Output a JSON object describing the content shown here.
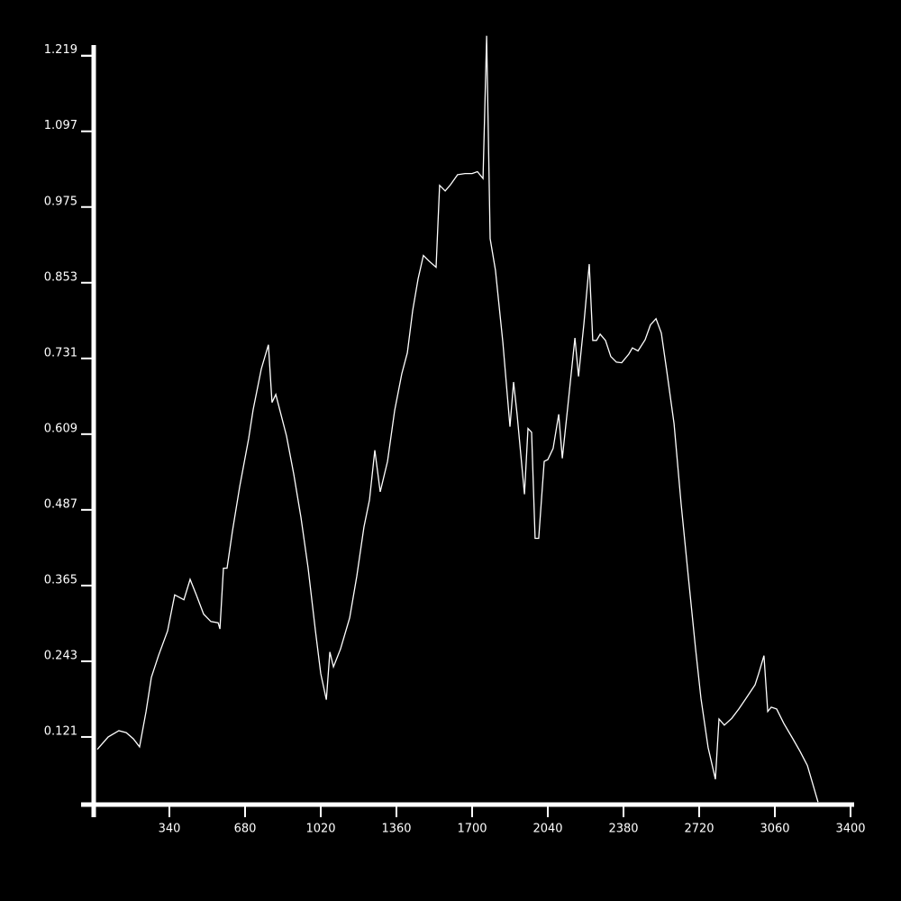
{
  "chart_data": {
    "type": "line",
    "color": "#ffffff",
    "xlim": [
      0,
      3400
    ],
    "ylim": [
      0.012,
      1.236
    ],
    "xticks": [
      340,
      680,
      1020,
      1360,
      1700,
      2040,
      2380,
      2720,
      3060,
      3400
    ],
    "yticks": [
      0.121,
      0.243,
      0.365,
      0.487,
      0.609,
      0.731,
      0.853,
      0.975,
      1.097,
      1.219
    ],
    "x": [
      16,
      65,
      113,
      146,
      178,
      206,
      235,
      259,
      291,
      332,
      364,
      405,
      433,
      461,
      494,
      526,
      559,
      567,
      583,
      599,
      623,
      656,
      696,
      716,
      753,
      785,
      801,
      818,
      866,
      899,
      931,
      963,
      996,
      1020,
      1045,
      1061,
      1077,
      1109,
      1150,
      1182,
      1214,
      1239,
      1263,
      1287,
      1320,
      1352,
      1384,
      1409,
      1433,
      1457,
      1481,
      1506,
      1538,
      1554,
      1579,
      1603,
      1635,
      1668,
      1700,
      1724,
      1749,
      1765,
      1781,
      1805,
      1838,
      1870,
      1886,
      1902,
      1935,
      1951,
      1967,
      1983,
      1999,
      2024,
      2040,
      2064,
      2089,
      2105,
      2129,
      2162,
      2178,
      2202,
      2226,
      2242,
      2259,
      2275,
      2299,
      2323,
      2348,
      2372,
      2404,
      2420,
      2445,
      2477,
      2501,
      2526,
      2550,
      2574,
      2607,
      2639,
      2671,
      2704,
      2728,
      2760,
      2793,
      2809,
      2833,
      2866,
      2898,
      2930,
      2971,
      2987,
      3011,
      3028,
      3044,
      3068,
      3100,
      3141,
      3173,
      3206,
      3254
    ],
    "values": [
      0.101,
      0.121,
      0.131,
      0.128,
      0.118,
      0.105,
      0.162,
      0.217,
      0.252,
      0.292,
      0.35,
      0.342,
      0.375,
      0.35,
      0.319,
      0.307,
      0.305,
      0.295,
      0.393,
      0.393,
      0.452,
      0.525,
      0.602,
      0.648,
      0.714,
      0.753,
      0.66,
      0.673,
      0.606,
      0.544,
      0.475,
      0.394,
      0.292,
      0.223,
      0.181,
      0.258,
      0.234,
      0.263,
      0.313,
      0.38,
      0.459,
      0.503,
      0.583,
      0.516,
      0.565,
      0.647,
      0.706,
      0.74,
      0.808,
      0.859,
      0.897,
      0.888,
      0.878,
      1.01,
      1.001,
      1.011,
      1.027,
      1.029,
      1.029,
      1.032,
      1.021,
      1.251,
      0.924,
      0.873,
      0.757,
      0.621,
      0.693,
      0.641,
      0.512,
      0.618,
      0.612,
      0.441,
      0.441,
      0.565,
      0.568,
      0.586,
      0.641,
      0.57,
      0.651,
      0.764,
      0.702,
      0.786,
      0.883,
      0.76,
      0.76,
      0.77,
      0.76,
      0.734,
      0.725,
      0.724,
      0.738,
      0.748,
      0.743,
      0.761,
      0.785,
      0.795,
      0.772,
      0.712,
      0.626,
      0.496,
      0.38,
      0.263,
      0.183,
      0.104,
      0.053,
      0.15,
      0.14,
      0.151,
      0.166,
      0.183,
      0.205,
      0.223,
      0.252,
      0.162,
      0.169,
      0.166,
      0.143,
      0.118,
      0.098,
      0.075,
      0.016
    ]
  }
}
